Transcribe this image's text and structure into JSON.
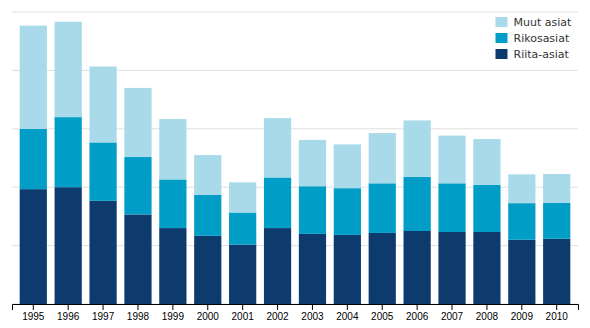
{
  "chart_data": {
    "type": "bar",
    "stacked": true,
    "categories": [
      1995,
      1996,
      1997,
      1998,
      1999,
      2000,
      2001,
      2002,
      2003,
      2004,
      2005,
      2006,
      2007,
      2008,
      2009,
      2010
    ],
    "series": [
      {
        "name": "Riita-asiat",
        "color": "#0d3b6e",
        "values": [
          590,
          600,
          530,
          460,
          390,
          350,
          305,
          390,
          360,
          355,
          365,
          375,
          370,
          370,
          330,
          335
        ]
      },
      {
        "name": "Rikosasiat",
        "color": "#009ec6",
        "values": [
          310,
          360,
          300,
          295,
          250,
          210,
          165,
          260,
          245,
          240,
          255,
          278,
          250,
          242,
          188,
          185
        ]
      },
      {
        "name": "Muut asiat",
        "color": "#a8daea",
        "values": [
          530,
          490,
          390,
          355,
          310,
          205,
          155,
          305,
          238,
          225,
          258,
          290,
          245,
          235,
          148,
          148
        ]
      }
    ],
    "ylim": [
      0,
      1500
    ],
    "yticks": [
      0,
      300,
      600,
      900,
      1200,
      1500
    ],
    "grid": true,
    "legend": "upper right",
    "tick_labels": "x"
  }
}
